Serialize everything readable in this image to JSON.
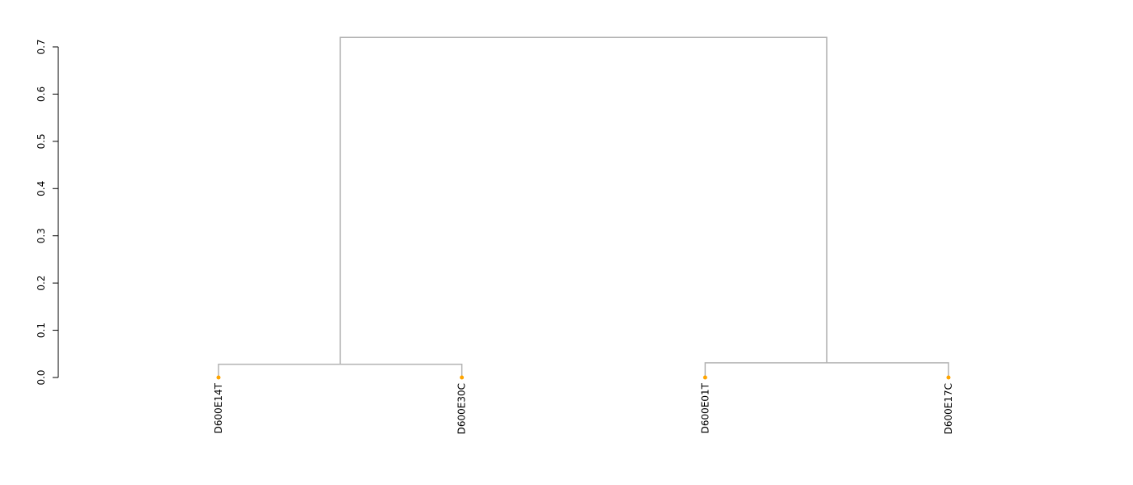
{
  "chart_data": {
    "type": "dendrogram",
    "title": "",
    "xlabel": "",
    "ylabel": "",
    "ylim": [
      0,
      0.7
    ],
    "yticks": [
      0.0,
      0.1,
      0.2,
      0.3,
      0.4,
      0.5,
      0.6,
      0.7
    ],
    "ytick_labels": [
      "0.0",
      "0.1",
      "0.2",
      "0.3",
      "0.4",
      "0.5",
      "0.6",
      "0.7"
    ],
    "grid": false,
    "leaves": [
      "D600E14T",
      "D600E30C",
      "D600E01T",
      "D600E17C"
    ],
    "merges": [
      {
        "left": "D600E14T",
        "right": "D600E30C",
        "height": 0.028
      },
      {
        "left": "D600E01T",
        "right": "D600E17C",
        "height": 0.031
      },
      {
        "left": "cluster-1",
        "right": "cluster-2",
        "height": 0.72
      }
    ],
    "colors": {
      "branch": "#b3b3b3",
      "leaf_point": "#ffa500",
      "axis": "#000000"
    }
  }
}
